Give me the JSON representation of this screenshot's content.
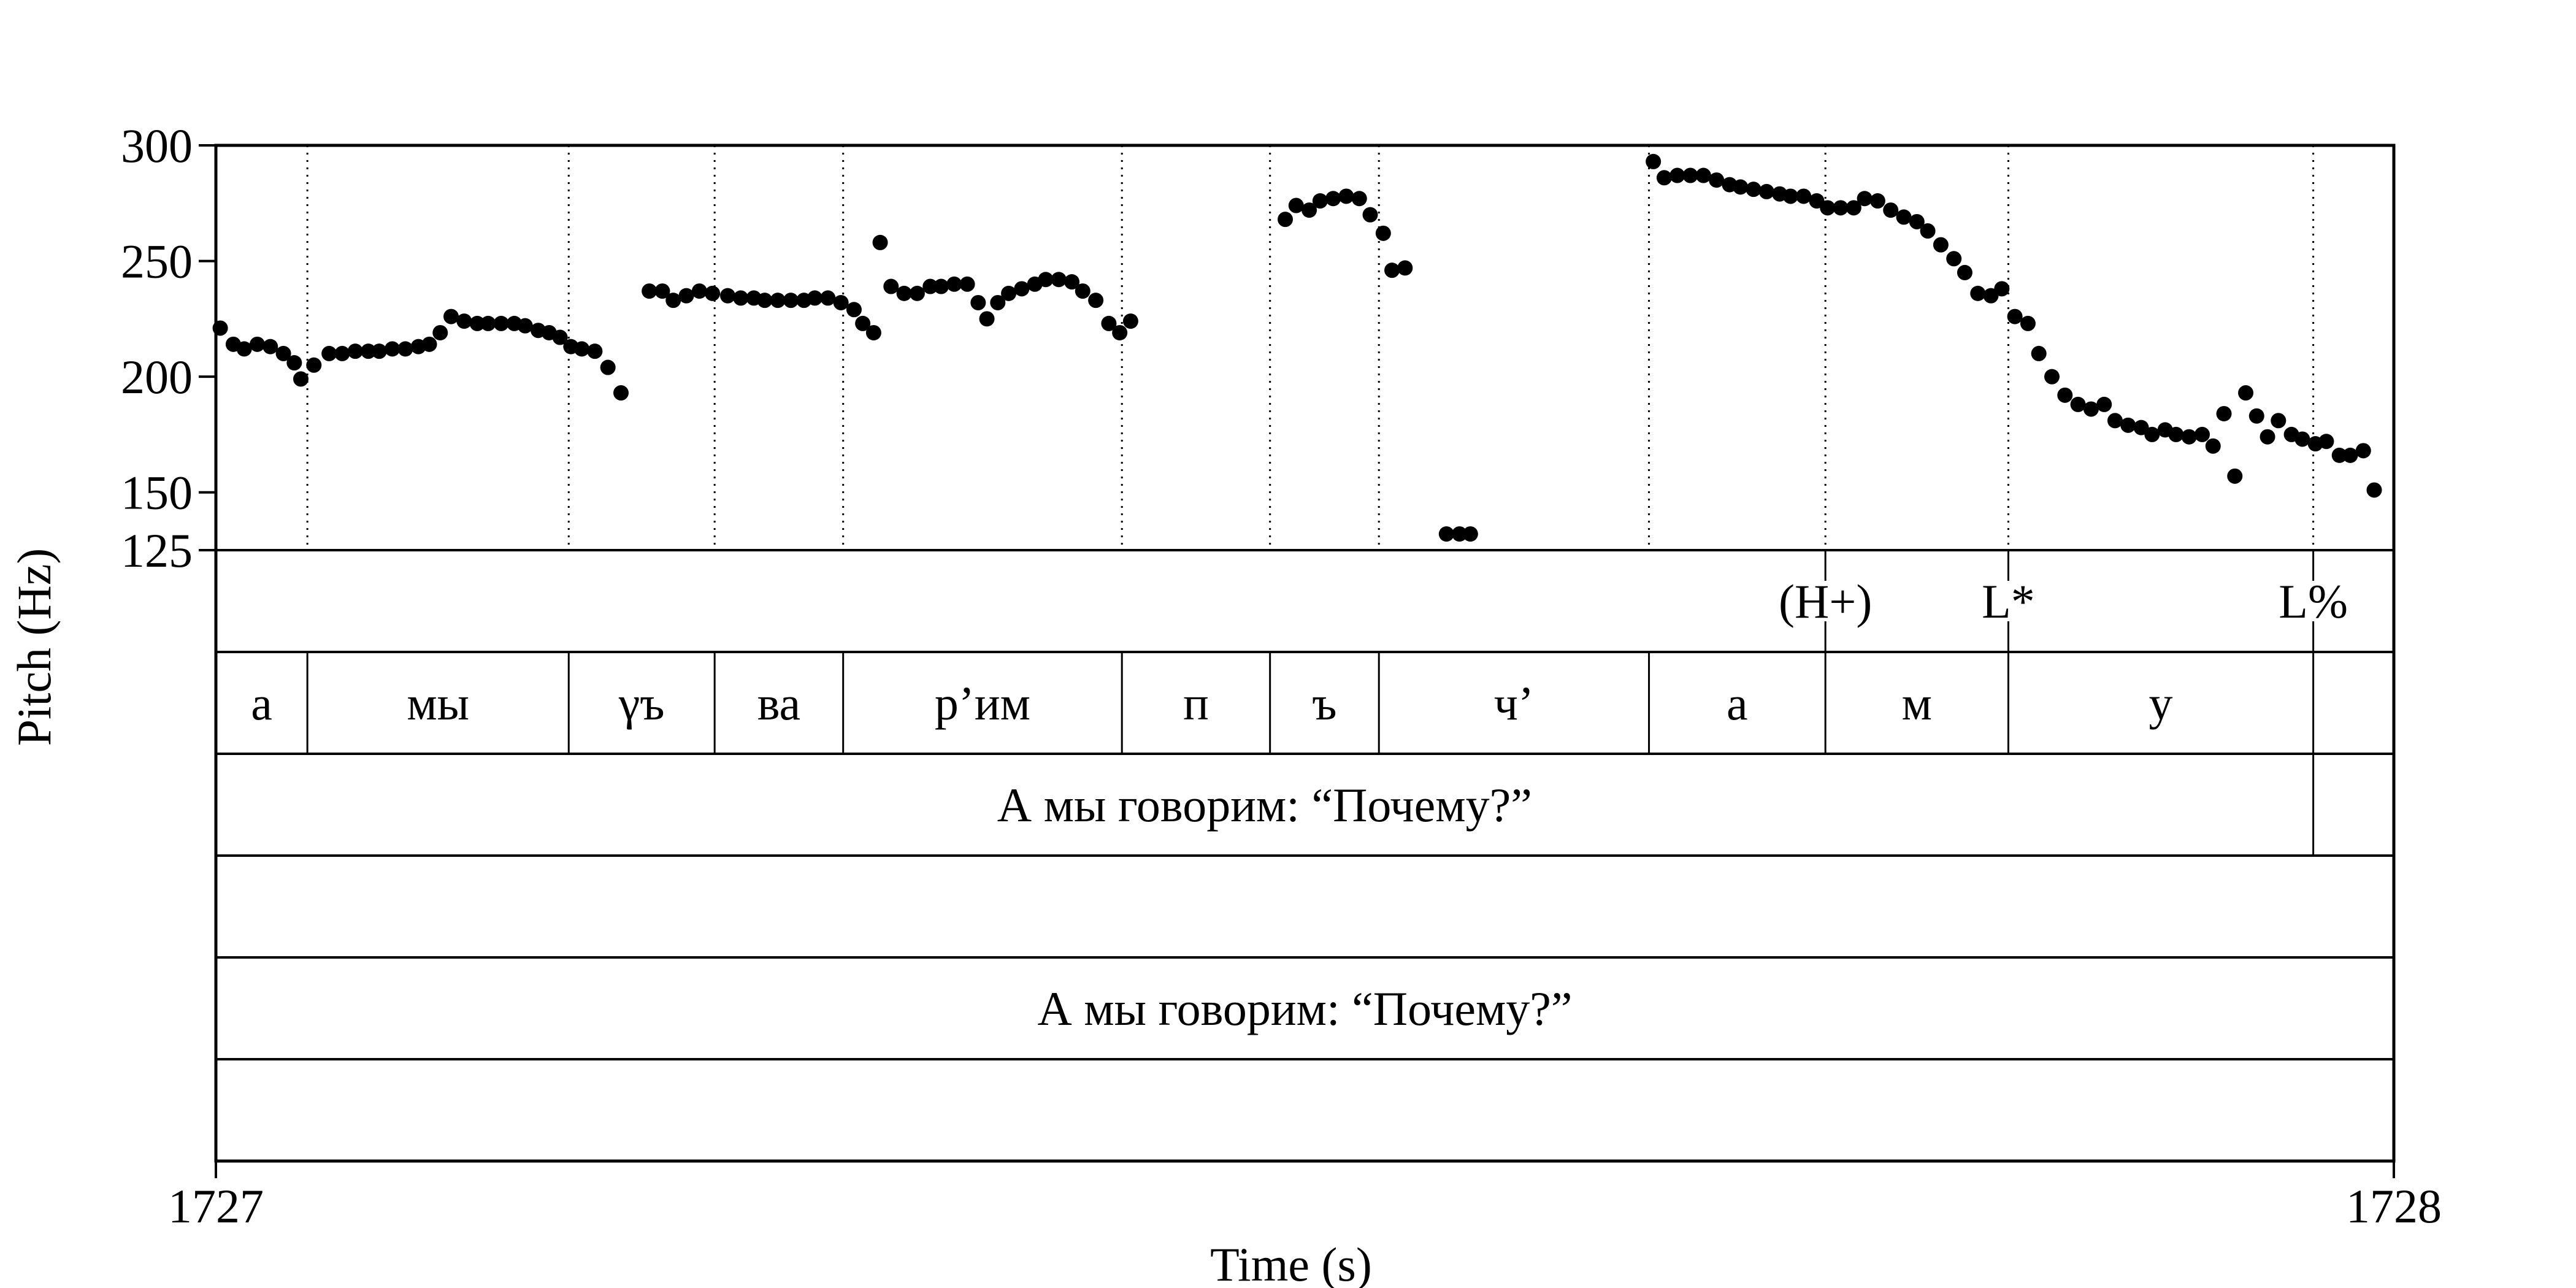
{
  "chart_data": {
    "type": "scatter",
    "xlabel": "Time (s)",
    "ylabel": "Pitch (Hz)",
    "xlim": [
      1727,
      1728
    ],
    "ylim": [
      125,
      300
    ],
    "x_ticks": [
      "1727",
      "1728"
    ],
    "y_ticks": [
      {
        "value": 300,
        "label": "300"
      },
      {
        "value": 250,
        "label": "250"
      },
      {
        "value": 200,
        "label": "200"
      },
      {
        "value": 150,
        "label": "150"
      },
      {
        "value": 125,
        "label": "125"
      }
    ],
    "boundaries": [
      1727.042,
      1727.162,
      1727.229,
      1727.288,
      1727.416,
      1727.484,
      1727.534,
      1727.658,
      1727.739,
      1727.823,
      1727.963
    ],
    "points": [
      [
        1727.002,
        221
      ],
      [
        1727.008,
        214
      ],
      [
        1727.013,
        212
      ],
      [
        1727.019,
        214
      ],
      [
        1727.025,
        213
      ],
      [
        1727.031,
        210
      ],
      [
        1727.036,
        206
      ],
      [
        1727.039,
        199
      ],
      [
        1727.045,
        205
      ],
      [
        1727.052,
        210
      ],
      [
        1727.058,
        210
      ],
      [
        1727.064,
        211
      ],
      [
        1727.07,
        211
      ],
      [
        1727.075,
        211
      ],
      [
        1727.081,
        212
      ],
      [
        1727.087,
        212
      ],
      [
        1727.093,
        213
      ],
      [
        1727.098,
        214
      ],
      [
        1727.103,
        219
      ],
      [
        1727.108,
        226
      ],
      [
        1727.114,
        224
      ],
      [
        1727.12,
        223
      ],
      [
        1727.125,
        223
      ],
      [
        1727.131,
        223
      ],
      [
        1727.137,
        223
      ],
      [
        1727.142,
        222
      ],
      [
        1727.148,
        220
      ],
      [
        1727.153,
        219
      ],
      [
        1727.158,
        217
      ],
      [
        1727.163,
        213
      ],
      [
        1727.168,
        212
      ],
      [
        1727.174,
        211
      ],
      [
        1727.18,
        204
      ],
      [
        1727.186,
        193
      ],
      [
        1727.199,
        237
      ],
      [
        1727.205,
        237
      ],
      [
        1727.21,
        233
      ],
      [
        1727.216,
        235
      ],
      [
        1727.222,
        237
      ],
      [
        1727.228,
        236
      ],
      [
        1727.235,
        235
      ],
      [
        1727.241,
        234
      ],
      [
        1727.247,
        234
      ],
      [
        1727.252,
        233
      ],
      [
        1727.258,
        233
      ],
      [
        1727.264,
        233
      ],
      [
        1727.27,
        233
      ],
      [
        1727.275,
        234
      ],
      [
        1727.281,
        234
      ],
      [
        1727.287,
        232
      ],
      [
        1727.293,
        229
      ],
      [
        1727.297,
        223
      ],
      [
        1727.302,
        219
      ],
      [
        1727.305,
        258
      ],
      [
        1727.31,
        239
      ],
      [
        1727.316,
        236
      ],
      [
        1727.322,
        236
      ],
      [
        1727.328,
        239
      ],
      [
        1727.333,
        239
      ],
      [
        1727.339,
        240
      ],
      [
        1727.345,
        240
      ],
      [
        1727.35,
        232
      ],
      [
        1727.354,
        225
      ],
      [
        1727.359,
        232
      ],
      [
        1727.364,
        236
      ],
      [
        1727.37,
        238
      ],
      [
        1727.376,
        240
      ],
      [
        1727.381,
        242
      ],
      [
        1727.387,
        242
      ],
      [
        1727.393,
        241
      ],
      [
        1727.398,
        237
      ],
      [
        1727.404,
        233
      ],
      [
        1727.41,
        223
      ],
      [
        1727.415,
        219
      ],
      [
        1727.42,
        224
      ],
      [
        1727.491,
        268
      ],
      [
        1727.496,
        274
      ],
      [
        1727.502,
        272
      ],
      [
        1727.507,
        276
      ],
      [
        1727.513,
        277
      ],
      [
        1727.519,
        278
      ],
      [
        1727.525,
        277
      ],
      [
        1727.53,
        270
      ],
      [
        1727.536,
        262
      ],
      [
        1727.54,
        246
      ],
      [
        1727.546,
        247
      ],
      [
        1727.565,
        132
      ],
      [
        1727.571,
        132
      ],
      [
        1727.576,
        132
      ],
      [
        1727.66,
        293
      ],
      [
        1727.665,
        286
      ],
      [
        1727.671,
        287
      ],
      [
        1727.677,
        287
      ],
      [
        1727.683,
        287
      ],
      [
        1727.689,
        285
      ],
      [
        1727.695,
        283
      ],
      [
        1727.7,
        282
      ],
      [
        1727.706,
        281
      ],
      [
        1727.712,
        280
      ],
      [
        1727.718,
        279
      ],
      [
        1727.723,
        278
      ],
      [
        1727.729,
        278
      ],
      [
        1727.735,
        276
      ],
      [
        1727.74,
        273
      ],
      [
        1727.746,
        273
      ],
      [
        1727.752,
        273
      ],
      [
        1727.757,
        277
      ],
      [
        1727.763,
        276
      ],
      [
        1727.769,
        272
      ],
      [
        1727.775,
        269
      ],
      [
        1727.781,
        267
      ],
      [
        1727.786,
        263
      ],
      [
        1727.792,
        257
      ],
      [
        1727.798,
        251
      ],
      [
        1727.803,
        245
      ],
      [
        1727.809,
        236
      ],
      [
        1727.815,
        235
      ],
      [
        1727.82,
        238
      ],
      [
        1727.826,
        226
      ],
      [
        1727.832,
        223
      ],
      [
        1727.837,
        210
      ],
      [
        1727.843,
        200
      ],
      [
        1727.849,
        192
      ],
      [
        1727.855,
        188
      ],
      [
        1727.861,
        186
      ],
      [
        1727.867,
        188
      ],
      [
        1727.872,
        181
      ],
      [
        1727.878,
        179
      ],
      [
        1727.884,
        178
      ],
      [
        1727.889,
        175
      ],
      [
        1727.895,
        177
      ],
      [
        1727.9,
        175
      ],
      [
        1727.906,
        174
      ],
      [
        1727.912,
        175
      ],
      [
        1727.917,
        170
      ],
      [
        1727.922,
        184
      ],
      [
        1727.927,
        157
      ],
      [
        1727.932,
        193
      ],
      [
        1727.937,
        183
      ],
      [
        1727.942,
        174
      ],
      [
        1727.947,
        181
      ],
      [
        1727.953,
        175
      ],
      [
        1727.958,
        173
      ],
      [
        1727.964,
        171
      ],
      [
        1727.969,
        172
      ],
      [
        1727.975,
        166
      ],
      [
        1727.98,
        166
      ],
      [
        1727.986,
        168
      ],
      [
        1727.991,
        151
      ]
    ],
    "tiers": [
      {
        "intervals": [],
        "points": [
          {
            "time": 1727.739,
            "label": "(H+)"
          },
          {
            "time": 1727.823,
            "label": "L*"
          },
          {
            "time": 1727.963,
            "label": "L%"
          }
        ]
      },
      {
        "intervals": [
          {
            "start": 1727.0,
            "end": 1727.042,
            "label": "а"
          },
          {
            "start": 1727.042,
            "end": 1727.162,
            "label": "мы"
          },
          {
            "start": 1727.162,
            "end": 1727.229,
            "label": "γъ"
          },
          {
            "start": 1727.229,
            "end": 1727.288,
            "label": "ва"
          },
          {
            "start": 1727.288,
            "end": 1727.416,
            "label": "р’им"
          },
          {
            "start": 1727.416,
            "end": 1727.484,
            "label": "п"
          },
          {
            "start": 1727.484,
            "end": 1727.534,
            "label": "ъ"
          },
          {
            "start": 1727.534,
            "end": 1727.658,
            "label": "ч’"
          },
          {
            "start": 1727.658,
            "end": 1727.739,
            "label": "а"
          },
          {
            "start": 1727.739,
            "end": 1727.823,
            "label": "м"
          },
          {
            "start": 1727.823,
            "end": 1727.963,
            "label": "у"
          },
          {
            "start": 1727.963,
            "end": 1728.0,
            "label": ""
          }
        ],
        "points": []
      },
      {
        "intervals": [
          {
            "start": 1727.0,
            "end": 1727.963,
            "label": "А мы говорим: “Почему?”"
          },
          {
            "start": 1727.963,
            "end": 1728.0,
            "label": ""
          }
        ],
        "points": []
      },
      {
        "intervals": [],
        "points": []
      },
      {
        "intervals": [
          {
            "start": 1727.0,
            "end": 1728.0,
            "label": "А мы говорим: “Почему?”"
          }
        ],
        "points": []
      },
      {
        "intervals": [],
        "points": []
      }
    ]
  }
}
